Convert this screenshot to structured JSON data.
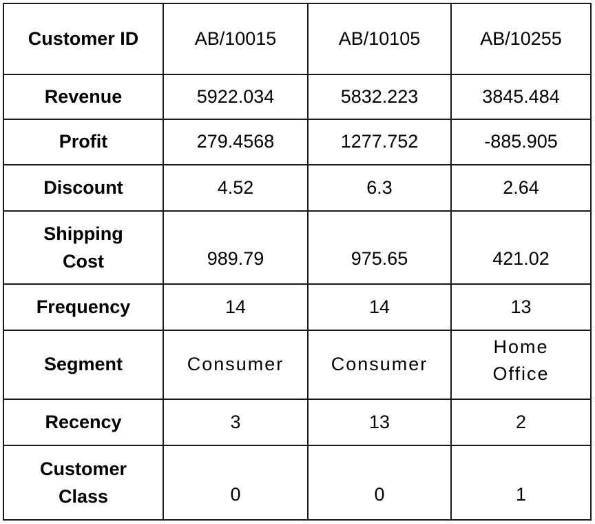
{
  "table": {
    "columns": [
      "AB/10015",
      "AB/10105",
      "AB/10255"
    ],
    "rows": [
      {
        "label": "Customer ID",
        "cells": [
          "AB/10015",
          "AB/10105",
          "AB/10255"
        ]
      },
      {
        "label": "Revenue",
        "cells": [
          "5922.034",
          "5832.223",
          "3845.484"
        ]
      },
      {
        "label": "Profit",
        "cells": [
          "279.4568",
          "1277.752",
          "-885.905"
        ]
      },
      {
        "label": "Discount",
        "cells": [
          "4.52",
          "6.3",
          "2.64"
        ]
      },
      {
        "label_lines": [
          "Shipping",
          "Cost"
        ],
        "cells": [
          "989.79",
          "975.65",
          "421.02"
        ]
      },
      {
        "label": "Frequency",
        "cells": [
          "14",
          "14",
          "13"
        ]
      },
      {
        "label": "Segment",
        "cells": [
          "Consumer",
          "Consumer"
        ],
        "cell_lines": [
          "Home",
          "Office"
        ]
      },
      {
        "label": "Recency",
        "cells": [
          "3",
          "13",
          "2"
        ]
      },
      {
        "label_lines": [
          "Customer",
          "Class"
        ],
        "cells": [
          "0",
          "0",
          "1"
        ]
      }
    ]
  }
}
